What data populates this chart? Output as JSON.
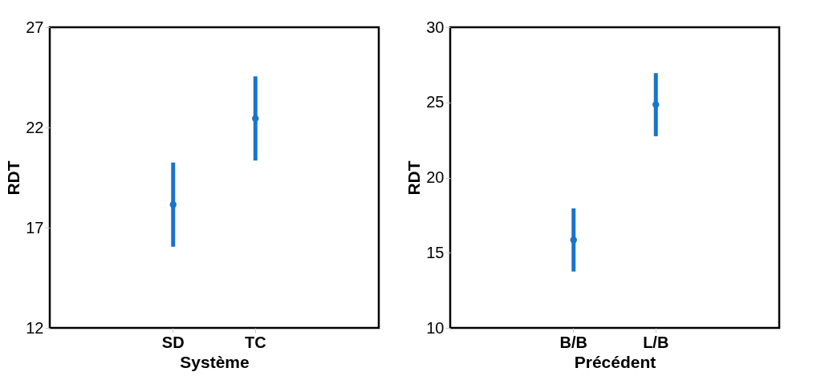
{
  "chart_data": [
    {
      "type": "scatter",
      "xlabel": "Système",
      "ylabel": "RDT",
      "categories": [
        "SD",
        "TC"
      ],
      "ylim": [
        12,
        27
      ],
      "yticks": [
        12,
        17,
        22,
        27
      ],
      "grid": false,
      "marker": "circle",
      "series": [
        {
          "color": "#1874cd",
          "values": [
            18.15,
            22.45
          ],
          "errors": [
            2.1,
            2.1
          ]
        }
      ]
    },
    {
      "type": "scatter",
      "xlabel": "Précédent",
      "ylabel": "RDT",
      "categories": [
        "B/B",
        "L/B"
      ],
      "ylim": [
        10,
        30
      ],
      "yticks": [
        10,
        15,
        20,
        25,
        30
      ],
      "grid": false,
      "marker": "circle",
      "series": [
        {
          "color": "#1874cd",
          "values": [
            15.85,
            24.85
          ],
          "errors": [
            2.1,
            2.1
          ]
        }
      ]
    }
  ]
}
